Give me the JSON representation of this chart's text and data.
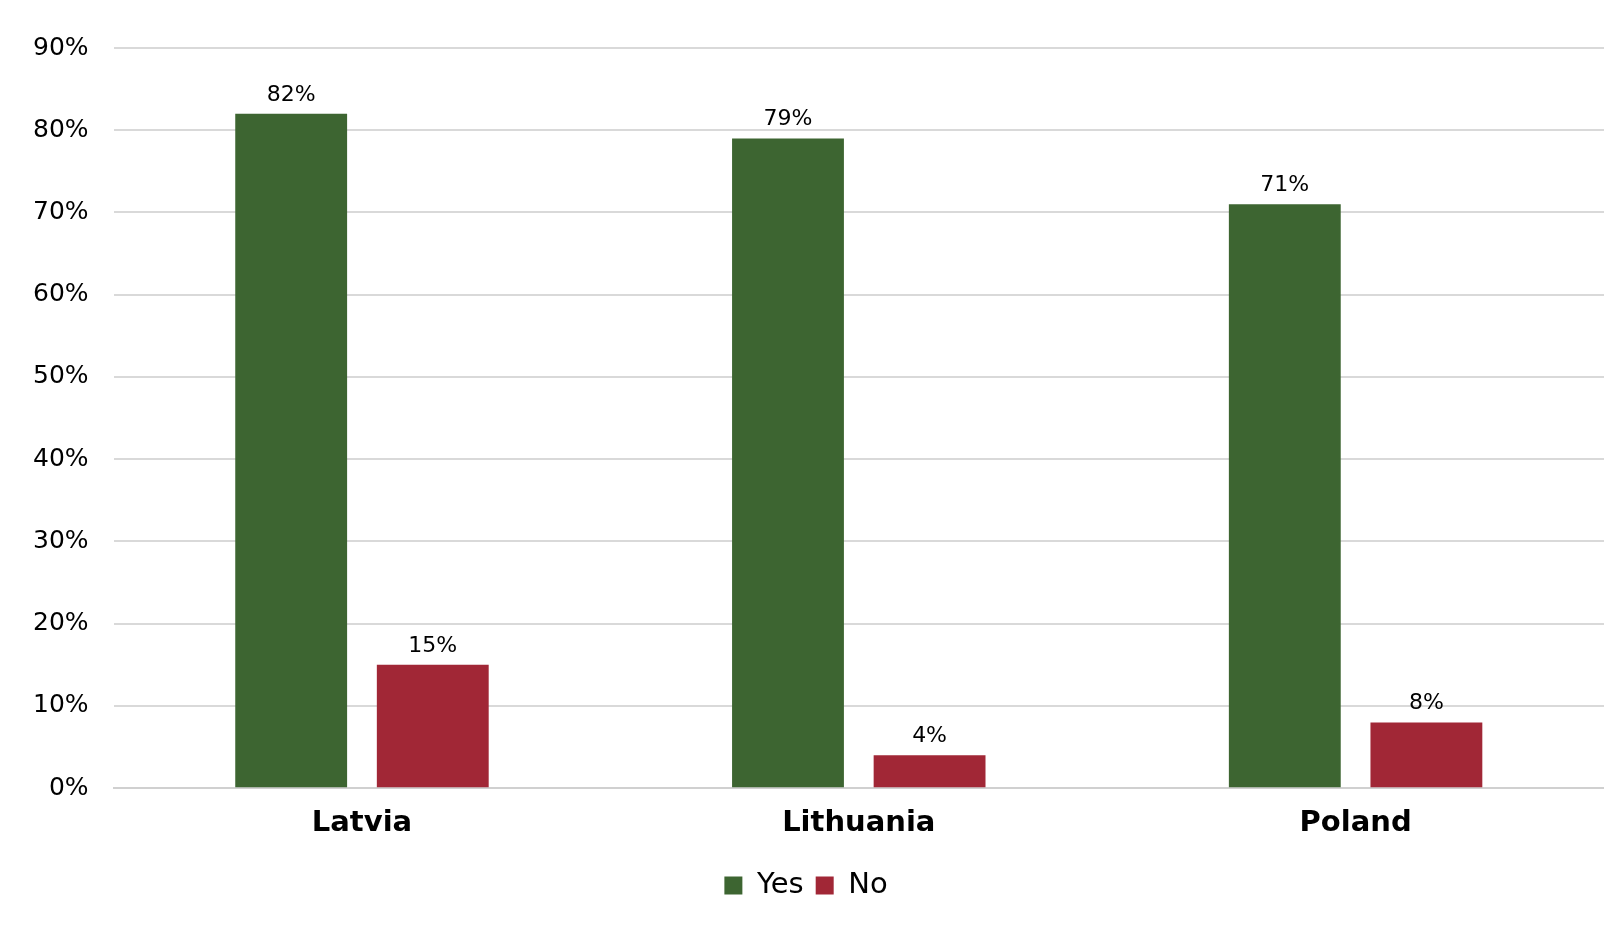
{
  "chart_data": {
    "type": "bar",
    "categories": [
      "Latvia",
      "Lithuania",
      "Poland"
    ],
    "series": [
      {
        "name": "Yes",
        "color": "#3d6531",
        "values": [
          82,
          79,
          71
        ],
        "value_labels": [
          "82%",
          "79%",
          "71%"
        ]
      },
      {
        "name": "No",
        "color": "#a12736",
        "values": [
          15,
          4,
          8
        ],
        "value_labels": [
          "15%",
          "4%",
          "8%"
        ]
      }
    ],
    "ylim": [
      0,
      90
    ],
    "yticks": [
      {
        "value": 0,
        "label": "0%"
      },
      {
        "value": 10,
        "label": "10%"
      },
      {
        "value": 20,
        "label": "20%"
      },
      {
        "value": 30,
        "label": "30%"
      },
      {
        "value": 40,
        "label": "40%"
      },
      {
        "value": 50,
        "label": "50%"
      },
      {
        "value": 60,
        "label": "60%"
      },
      {
        "value": 70,
        "label": "70%"
      },
      {
        "value": 80,
        "label": "80%"
      },
      {
        "value": 90,
        "label": "90%"
      }
    ],
    "grid": "y",
    "legend": "bottom"
  }
}
